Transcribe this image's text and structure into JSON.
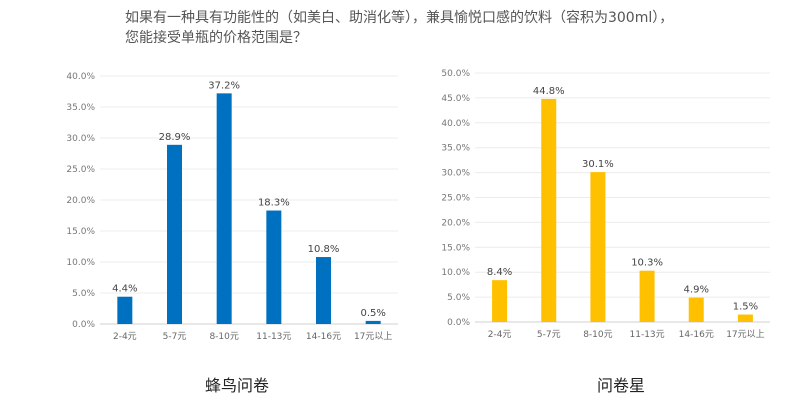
{
  "title": "如果有一种具有功能性的（如美白、助消化等），兼具愉悦口感的饮料（容积为300ml），您能接受单瓶的价格范围是？",
  "chart_data": [
    {
      "type": "bar",
      "title": "蜂鸟问卷",
      "categories": [
        "2-4元",
        "5-7元",
        "8-10元",
        "11-13元",
        "14-16元",
        "17元以上"
      ],
      "values": [
        4.4,
        28.9,
        37.2,
        18.3,
        10.8,
        0.5
      ],
      "data_labels": [
        "4.4%",
        "28.9%",
        "37.2%",
        "18.3%",
        "10.8%",
        "0.5%"
      ],
      "ylim": [
        0,
        40
      ],
      "yticks": [
        "0.0%",
        "5.0%",
        "10.0%",
        "15.0%",
        "20.0%",
        "25.0%",
        "30.0%",
        "35.0%",
        "40.0%"
      ],
      "grid": true,
      "color": "#0070C0"
    },
    {
      "type": "bar",
      "title": "问卷星",
      "categories": [
        "2-4元",
        "5-7元",
        "8-10元",
        "11-13元",
        "14-16元",
        "17元以上"
      ],
      "values": [
        8.4,
        44.8,
        30.1,
        10.3,
        4.9,
        1.5
      ],
      "data_labels": [
        "8.4%",
        "44.8%",
        "30.1%",
        "10.3%",
        "4.9%",
        "1.5%"
      ],
      "ylim": [
        0,
        50
      ],
      "yticks": [
        "0.0%",
        "5.0%",
        "10.0%",
        "15.0%",
        "20.0%",
        "25.0%",
        "30.0%",
        "35.0%",
        "40.0%",
        "45.0%",
        "50.0%"
      ],
      "grid": true,
      "color": "#FFC000"
    }
  ]
}
